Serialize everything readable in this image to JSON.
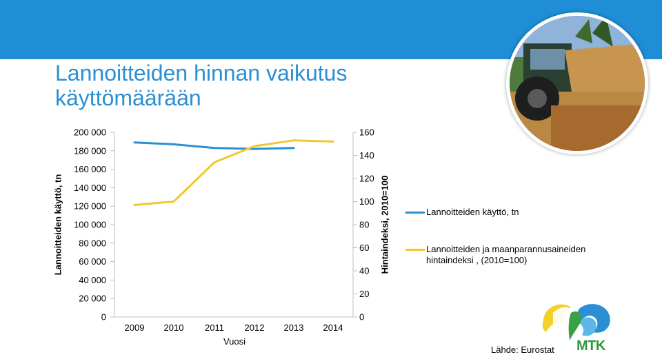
{
  "title": "Lannoitteiden hinnan vaikutus käyttömäärään",
  "chart_data": {
    "type": "line",
    "x": [
      2009,
      2010,
      2011,
      2012,
      2013,
      2014
    ],
    "xlabel": "Vuosi",
    "left_axis": {
      "label": "Lannoitteiden käyttö, tn",
      "range": [
        0,
        200000
      ],
      "ticks": [
        "0",
        "20 000",
        "40 000",
        "60 000",
        "80 000",
        "100 000",
        "120 000",
        "140 000",
        "160 000",
        "180 000",
        "200 000"
      ]
    },
    "right_axis": {
      "label": "Hintaindeksi, 2010=100",
      "range": [
        0,
        160
      ],
      "ticks": [
        "0",
        "20",
        "40",
        "60",
        "80",
        "100",
        "120",
        "140",
        "160"
      ]
    },
    "series": [
      {
        "name": "Lannoitteiden käyttö, tn",
        "axis": "left",
        "color": "#2a8fd3",
        "values": [
          189000,
          187000,
          183000,
          182000,
          183000,
          null
        ]
      },
      {
        "name": "Lannoitteiden ja maanparannusaineiden hintaindeksi , (2010=100)",
        "axis": "right",
        "color": "#f2c62f",
        "values": [
          97,
          100,
          134,
          148,
          153,
          152
        ]
      }
    ],
    "legend_position": "right"
  },
  "source_text": "Lähde: Eurostat",
  "logo_text": "MTK"
}
